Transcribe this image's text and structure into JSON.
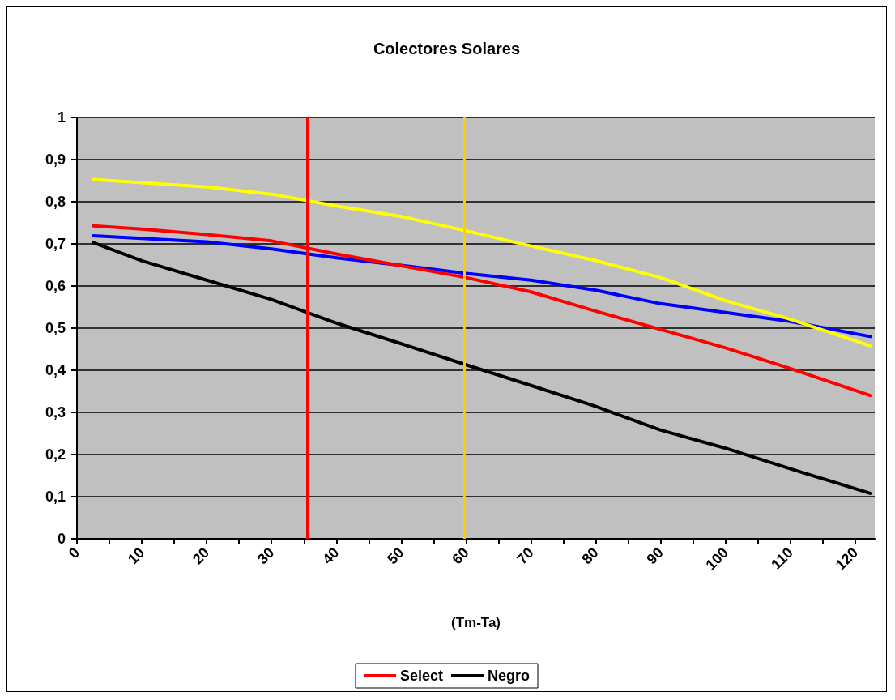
{
  "chart_data": {
    "type": "line",
    "title": "Colectores Solares",
    "xlabel": "(Tm-Ta)",
    "x": [
      2.5,
      10,
      20,
      30,
      40,
      50,
      60,
      70,
      80,
      90,
      100,
      110,
      122.3
    ],
    "series": [
      {
        "color": "#0000ff",
        "values": [
          0.719,
          0.713,
          0.705,
          0.688,
          0.667,
          0.649,
          0.63,
          0.614,
          0.59,
          0.558,
          0.537,
          0.516,
          0.48
        ]
      },
      {
        "color": "#ffff00",
        "values": [
          0.853,
          0.845,
          0.835,
          0.818,
          0.79,
          0.765,
          0.731,
          0.695,
          0.66,
          0.62,
          0.565,
          0.521,
          0.458
        ]
      },
      {
        "name": "Select",
        "color": "#ff0000",
        "values": [
          0.743,
          0.735,
          0.722,
          0.707,
          0.676,
          0.648,
          0.62,
          0.586,
          0.54,
          0.497,
          0.453,
          0.404,
          0.34
        ]
      },
      {
        "name": "Negro",
        "color": "#000000",
        "values": [
          0.703,
          0.66,
          0.614,
          0.568,
          0.512,
          0.463,
          0.413,
          0.364,
          0.314,
          0.258,
          0.215,
          0.166,
          0.108
        ]
      }
    ],
    "xlim": [
      0,
      123
    ],
    "xticks": [
      0,
      {
        "value": 5,
        "label": null
      },
      10,
      {
        "value": 15,
        "label": null
      },
      20,
      {
        "value": 25,
        "label": null
      },
      30,
      {
        "value": 35,
        "label": null
      },
      40,
      {
        "value": 45,
        "label": null
      },
      50,
      {
        "value": 55,
        "label": null
      },
      60,
      {
        "value": 65,
        "label": null
      },
      70,
      {
        "value": 75,
        "label": null
      },
      80,
      {
        "value": 85,
        "label": null
      },
      90,
      {
        "value": 95,
        "label": null
      },
      100,
      {
        "value": 105,
        "label": null
      },
      110,
      {
        "value": 115,
        "label": null
      },
      120
    ],
    "ylim": [
      0,
      1
    ],
    "yticks": [
      0,
      {
        "value": 0.1,
        "label": "0,1"
      },
      {
        "value": 0.2,
        "label": "0,2"
      },
      {
        "value": 0.3,
        "label": "0,3"
      },
      {
        "value": 0.4,
        "label": "0,4"
      },
      {
        "value": 0.5,
        "label": "0,5"
      },
      {
        "value": 0.6,
        "label": "0,6"
      },
      {
        "value": 0.7,
        "label": "0,7"
      },
      {
        "value": 0.8,
        "label": "0,8"
      },
      {
        "value": 0.9,
        "label": "0,9"
      },
      1
    ],
    "ref_lines": [
      {
        "axis": "x",
        "value": 35.5,
        "color": "#ff0000"
      },
      {
        "axis": "x",
        "value": 59.7,
        "color": "#ffcc00"
      }
    ],
    "grid": "y",
    "legend": "bottom",
    "marker": "none",
    "line_style": "solid"
  }
}
